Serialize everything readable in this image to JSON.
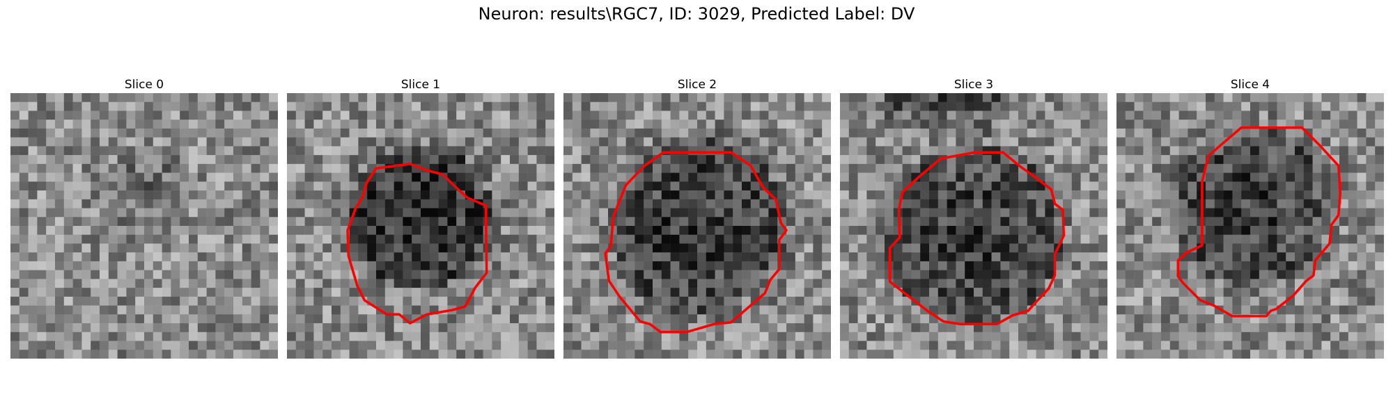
{
  "figure": {
    "title": "Neuron: results\\RGC7, ID: 3029, Predicted Label: DV"
  },
  "colors": {
    "contour": "#ff0000",
    "background": "#ffffff"
  },
  "panels": [
    {
      "title": "Slice 0",
      "contour": false
    },
    {
      "title": "Slice 1",
      "contour": true
    },
    {
      "title": "Slice 2",
      "contour": true
    },
    {
      "title": "Slice 3",
      "contour": true
    },
    {
      "title": "Slice 4",
      "contour": true
    }
  ]
}
